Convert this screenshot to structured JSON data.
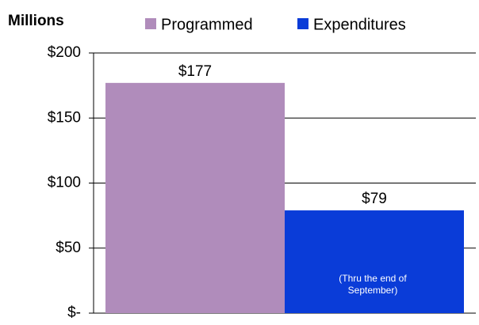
{
  "chart_data": {
    "type": "bar",
    "title": "Millions",
    "categories": [
      null
    ],
    "series": [
      {
        "name": "Programmed",
        "color": "#b08cbb",
        "values": [
          177
        ],
        "value_labels": [
          "$177"
        ]
      },
      {
        "name": "Expenditures",
        "color": "#0a3cd8",
        "values": [
          79
        ],
        "value_labels": [
          "$79"
        ]
      }
    ],
    "ylim": [
      0,
      200
    ],
    "yticks": [
      {
        "value": 0,
        "label": "$-"
      },
      {
        "value": 50,
        "label": "$50"
      },
      {
        "value": 100,
        "label": "$100"
      },
      {
        "value": 150,
        "label": "$150"
      },
      {
        "value": 200,
        "label": "$200"
      }
    ],
    "grid": true,
    "legend": "top",
    "annotation": "(Thru the end of September)"
  }
}
